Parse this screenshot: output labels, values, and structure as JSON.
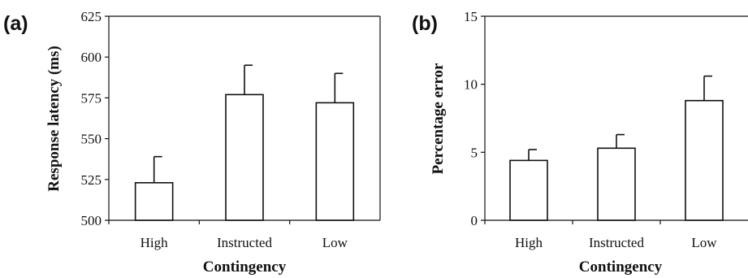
{
  "chart_data": [
    {
      "type": "bar",
      "panel_label": "(a)",
      "title": "",
      "categories": [
        "High",
        "Instructed",
        "Low"
      ],
      "values": [
        523,
        577,
        572
      ],
      "error_upper": [
        539,
        595,
        590
      ],
      "xlabel": "Contingency",
      "ylabel": "Response latency (ms)",
      "ylim": [
        500,
        625
      ],
      "yticks": [
        "500",
        "525",
        "550",
        "575",
        "600",
        "625"
      ],
      "grid": false
    },
    {
      "type": "bar",
      "panel_label": "(b)",
      "title": "",
      "categories": [
        "High",
        "Instructed",
        "Low"
      ],
      "values": [
        4.4,
        5.3,
        8.8
      ],
      "error_upper": [
        5.2,
        6.3,
        10.6
      ],
      "xlabel": "Contingency",
      "ylabel": "Percentage error",
      "ylim": [
        0,
        15
      ],
      "yticks": [
        "0",
        "5",
        "10",
        "15"
      ],
      "grid": false
    }
  ]
}
